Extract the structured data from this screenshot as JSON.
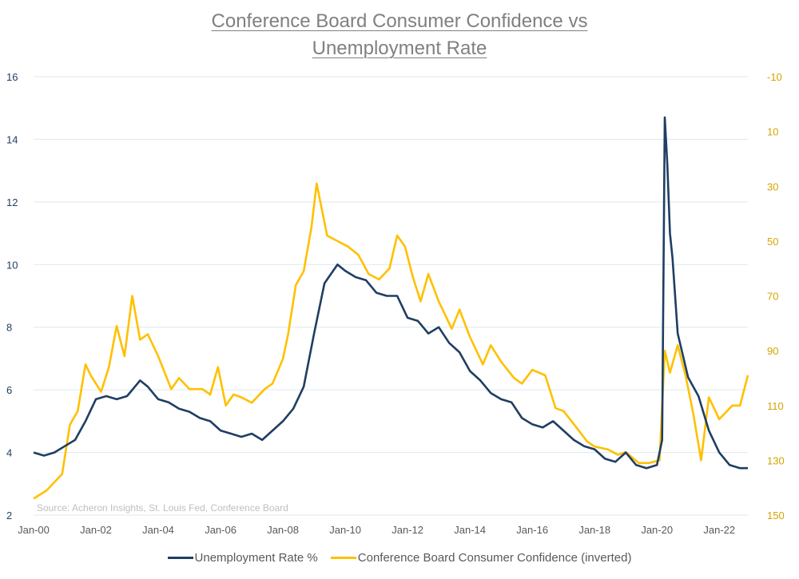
{
  "title_line1": "Conference Board Consumer Confidence vs",
  "title_line2": "Unemployment Rate",
  "source_note": "Source: Acheron Insights, St. Louis Fed, Conference Board",
  "colors": {
    "unemployment": "#1f3e63",
    "confidence": "#ffc000",
    "grid": "#dde9ee",
    "left_axis_text": "#1f3e63",
    "right_axis_text": "#d4a400"
  },
  "chart_data": {
    "type": "line",
    "x_axis": {
      "ticks": [
        "Jan-00",
        "Jan-02",
        "Jan-04",
        "Jan-06",
        "Jan-08",
        "Jan-10",
        "Jan-12",
        "Jan-14",
        "Jan-16",
        "Jan-18",
        "Jan-20",
        "Jan-22"
      ],
      "range": [
        "2000-01",
        "2022-12"
      ]
    },
    "y_left": {
      "ticks": [
        2,
        4,
        6,
        8,
        10,
        12,
        14,
        16
      ],
      "ylim": [
        2,
        16
      ],
      "series": "Unemployment Rate %"
    },
    "y_right": {
      "ticks": [
        "-10",
        "10",
        "30",
        "50",
        "70",
        "90",
        "110",
        "130",
        "150"
      ],
      "ylim": [
        -10,
        150
      ],
      "inverted": true,
      "series": "Conference Board Consumer Confidence (inverted)"
    },
    "x_start": "2000-01",
    "series": [
      {
        "name": "Unemployment Rate %",
        "axis": "left",
        "x": [
          "2000-01",
          "2000-05",
          "2000-09",
          "2001-01",
          "2001-05",
          "2001-09",
          "2002-01",
          "2002-05",
          "2002-09",
          "2003-01",
          "2003-06",
          "2003-09",
          "2004-01",
          "2004-05",
          "2004-09",
          "2005-01",
          "2005-05",
          "2005-09",
          "2006-01",
          "2006-05",
          "2006-09",
          "2007-01",
          "2007-05",
          "2007-09",
          "2008-01",
          "2008-05",
          "2008-09",
          "2009-01",
          "2009-05",
          "2009-10",
          "2010-01",
          "2010-05",
          "2010-09",
          "2011-01",
          "2011-05",
          "2011-09",
          "2012-01",
          "2012-05",
          "2012-09",
          "2013-01",
          "2013-05",
          "2013-09",
          "2014-01",
          "2014-05",
          "2014-09",
          "2015-01",
          "2015-05",
          "2015-09",
          "2016-01",
          "2016-05",
          "2016-09",
          "2017-01",
          "2017-05",
          "2017-09",
          "2018-01",
          "2018-05",
          "2018-09",
          "2019-01",
          "2019-05",
          "2019-09",
          "2020-01",
          "2020-03",
          "2020-04",
          "2020-05",
          "2020-06",
          "2020-07",
          "2020-09",
          "2021-01",
          "2021-05",
          "2021-09",
          "2022-01",
          "2022-05",
          "2022-09",
          "2022-12"
        ],
        "values": [
          4.0,
          3.9,
          4.0,
          4.2,
          4.4,
          5.0,
          5.7,
          5.8,
          5.7,
          5.8,
          6.3,
          6.1,
          5.7,
          5.6,
          5.4,
          5.3,
          5.1,
          5.0,
          4.7,
          4.6,
          4.5,
          4.6,
          4.4,
          4.7,
          5.0,
          5.4,
          6.1,
          7.8,
          9.4,
          10.0,
          9.8,
          9.6,
          9.5,
          9.1,
          9.0,
          9.0,
          8.3,
          8.2,
          7.8,
          8.0,
          7.5,
          7.2,
          6.6,
          6.3,
          5.9,
          5.7,
          5.6,
          5.1,
          4.9,
          4.8,
          5.0,
          4.7,
          4.4,
          4.2,
          4.1,
          3.8,
          3.7,
          4.0,
          3.6,
          3.5,
          3.6,
          4.4,
          14.7,
          13.2,
          11.0,
          10.2,
          7.8,
          6.4,
          5.8,
          4.7,
          4.0,
          3.6,
          3.5,
          3.5
        ]
      },
      {
        "name": "Conference Board Consumer Confidence (inverted)",
        "axis": "right",
        "x": [
          "2000-01",
          "2000-06",
          "2000-12",
          "2001-03",
          "2001-06",
          "2001-09",
          "2001-11",
          "2002-03",
          "2002-06",
          "2002-09",
          "2002-12",
          "2003-03",
          "2003-06",
          "2003-09",
          "2004-01",
          "2004-06",
          "2004-09",
          "2005-01",
          "2005-06",
          "2005-09",
          "2005-12",
          "2006-03",
          "2006-06",
          "2006-09",
          "2007-01",
          "2007-06",
          "2007-09",
          "2008-01",
          "2008-03",
          "2008-06",
          "2008-09",
          "2008-12",
          "2009-02",
          "2009-06",
          "2009-10",
          "2010-02",
          "2010-06",
          "2010-10",
          "2011-02",
          "2011-06",
          "2011-09",
          "2011-12",
          "2012-03",
          "2012-06",
          "2012-09",
          "2013-01",
          "2013-06",
          "2013-09",
          "2014-01",
          "2014-06",
          "2014-09",
          "2015-01",
          "2015-06",
          "2015-09",
          "2016-01",
          "2016-06",
          "2016-10",
          "2017-01",
          "2017-06",
          "2017-10",
          "2018-01",
          "2018-06",
          "2018-10",
          "2019-01",
          "2019-06",
          "2019-10",
          "2020-02",
          "2020-04",
          "2020-06",
          "2020-09",
          "2020-12",
          "2021-03",
          "2021-06",
          "2021-09",
          "2022-01",
          "2022-06",
          "2022-09",
          "2022-12"
        ],
        "values": [
          144,
          141,
          135,
          117,
          112,
          95,
          99,
          105,
          96,
          81,
          92,
          70,
          86,
          84,
          92,
          104,
          100,
          104,
          104,
          106,
          96,
          110,
          106,
          107,
          109,
          104,
          102,
          93,
          84,
          66,
          61,
          45,
          29,
          48,
          50,
          52,
          55,
          62,
          64,
          60,
          48,
          52,
          63,
          72,
          62,
          72,
          82,
          75,
          85,
          95,
          88,
          94,
          100,
          102,
          97,
          99,
          111,
          112,
          118,
          123,
          125,
          126,
          128,
          127,
          131,
          131,
          130,
          90,
          98,
          88,
          99,
          113,
          130,
          107,
          115,
          110,
          110,
          99
        ]
      }
    ]
  }
}
